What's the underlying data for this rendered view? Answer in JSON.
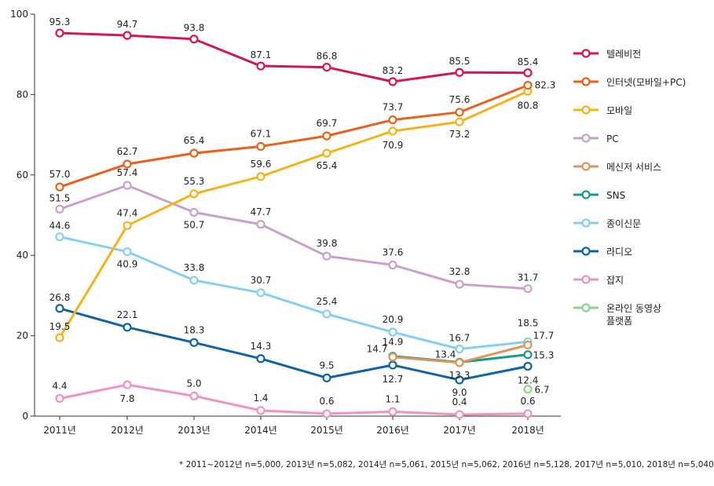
{
  "chart_data": {
    "type": "line",
    "categories": [
      "2011년",
      "2012년",
      "2013년",
      "2014년",
      "2015년",
      "2016년",
      "2017년",
      "2018년"
    ],
    "ylim": [
      0,
      100
    ],
    "yticks": [
      "0",
      "20",
      "40",
      "60",
      "80",
      "100"
    ],
    "grid": false,
    "legend_position": "right",
    "series": [
      {
        "name": "텔레비전",
        "color": "#d6174f",
        "values": [
          95.3,
          94.7,
          93.8,
          87.1,
          86.8,
          83.2,
          85.5,
          85.4
        ],
        "labels": [
          "95.3",
          "94.7",
          "93.8",
          "87.1",
          "86.8",
          "83.2",
          "85.5",
          "85.4"
        ]
      },
      {
        "name": "인터넷(모바일+PC)",
        "color": "#e8621d",
        "values": [
          57.0,
          62.7,
          65.4,
          67.1,
          69.7,
          73.7,
          75.6,
          82.3
        ],
        "labels": [
          "57.0",
          "62.7",
          "65.4",
          "67.1",
          "69.7",
          "73.7",
          "75.6",
          "82.3"
        ]
      },
      {
        "name": "모바일",
        "color": "#f5b31b",
        "values": [
          19.5,
          47.4,
          55.3,
          59.6,
          65.4,
          70.9,
          73.2,
          80.8
        ],
        "labels": [
          "19.5",
          "47.4",
          "55.3",
          "59.6",
          "65.4",
          "70.9",
          "73.2",
          "80.8"
        ]
      },
      {
        "name": "PC",
        "color": "#c9a1cc",
        "values": [
          51.5,
          57.4,
          50.7,
          47.7,
          39.8,
          37.6,
          32.8,
          31.7
        ],
        "labels": [
          "51.5",
          "57.4",
          "50.7",
          "47.7",
          "39.8",
          "37.6",
          "32.8",
          "31.7"
        ]
      },
      {
        "name": "메신저 서비스",
        "color": "#d9975a",
        "values": [
          null,
          null,
          null,
          null,
          null,
          14.7,
          13.3,
          17.7
        ],
        "labels": [
          null,
          null,
          null,
          null,
          null,
          "14.7",
          "13.3",
          "17.7"
        ]
      },
      {
        "name": "SNS",
        "color": "#189b8c",
        "values": [
          null,
          null,
          null,
          null,
          null,
          14.9,
          13.4,
          15.3
        ],
        "labels": [
          null,
          null,
          null,
          null,
          null,
          "14.9",
          "13.4",
          "15.3"
        ]
      },
      {
        "name": "종이신문",
        "color": "#86cff0",
        "values": [
          44.6,
          40.9,
          33.8,
          30.7,
          25.4,
          20.9,
          16.7,
          18.5
        ],
        "labels": [
          "44.6",
          "40.9",
          "33.8",
          "30.7",
          "25.4",
          "20.9",
          "16.7",
          "18.5"
        ]
      },
      {
        "name": "라디오",
        "color": "#0e63a9",
        "values": [
          26.8,
          22.1,
          18.3,
          14.3,
          9.5,
          12.7,
          9.0,
          12.4
        ],
        "labels": [
          "26.8",
          "22.1",
          "18.3",
          "14.3",
          "9.5",
          "12.7",
          "9.0",
          "12.4"
        ]
      },
      {
        "name": "잡지",
        "color": "#ef93bf",
        "values": [
          4.4,
          7.8,
          5.0,
          1.4,
          0.6,
          1.1,
          0.4,
          0.6
        ],
        "labels": [
          "4.4",
          "7.8",
          "5.0",
          "1.4",
          "0.6",
          "1.1",
          "0.4",
          "0.6"
        ]
      },
      {
        "name": "온라인 동영상\n플랫폼",
        "color": "#8fd08f",
        "values": [
          null,
          null,
          null,
          null,
          null,
          null,
          null,
          6.7
        ],
        "labels": [
          null,
          null,
          null,
          null,
          null,
          null,
          null,
          "6.7"
        ]
      }
    ]
  },
  "footnote": "* 2011~2012년 n=5,000, 2013년 n=5,082, 2014년 n=5,061, 2015년 n=5,062, 2016년 n=5,128, 2017년 n=5,010, 2018년 n=5,040"
}
